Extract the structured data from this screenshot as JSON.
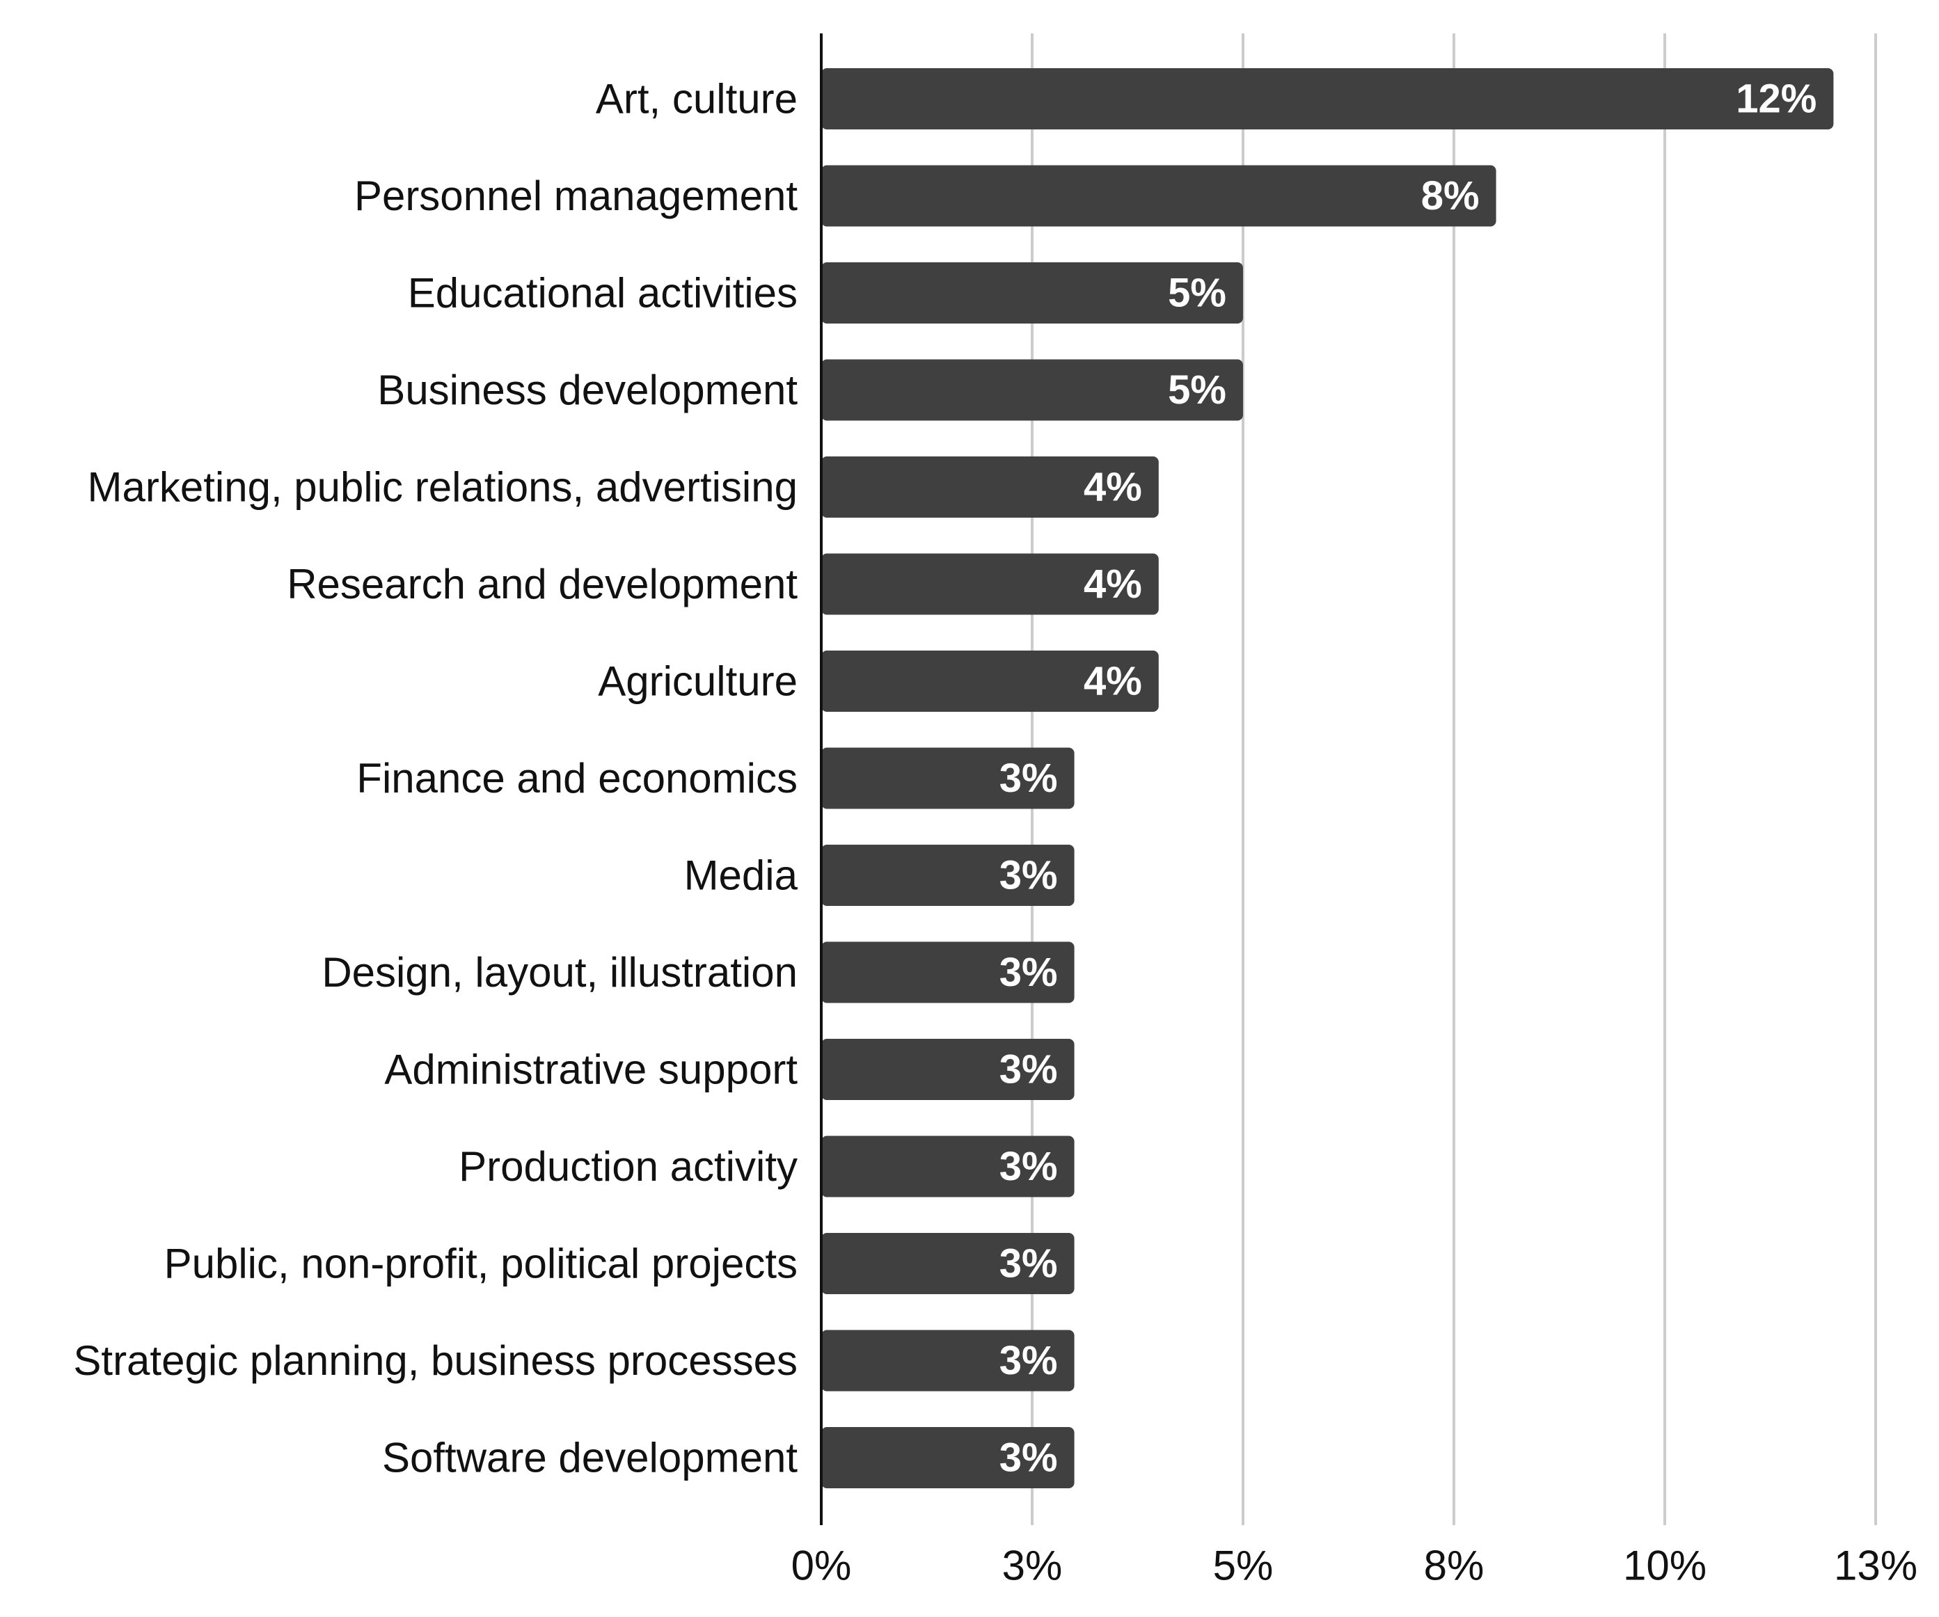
{
  "chart_data": {
    "type": "bar",
    "orientation": "horizontal",
    "title": "",
    "xlabel": "",
    "ylabel": "",
    "categories": [
      "Art, culture",
      "Personnel management",
      "Educational activities",
      "Business development",
      "Marketing, public relations, advertising",
      "Research and development",
      "Agriculture",
      "Finance and economics",
      "Media",
      "Design, layout, illustration",
      "Administrative support",
      "Production activity",
      "Public, non-profit, political projects",
      "Strategic planning, business processes",
      "Software development"
    ],
    "values": [
      12.0,
      8.0,
      5.0,
      5.0,
      4.0,
      4.0,
      4.0,
      3.0,
      3.0,
      3.0,
      3.0,
      3.0,
      3.0,
      3.0,
      3.0
    ],
    "value_labels": [
      "12%",
      "8%",
      "5%",
      "5%",
      "4%",
      "4%",
      "4%",
      "3%",
      "3%",
      "3%",
      "3%",
      "3%",
      "3%",
      "3%",
      "3%"
    ],
    "xlim": [
      0,
      12.5
    ],
    "xticks": [
      0,
      2.5,
      5,
      7.5,
      10,
      12.5
    ],
    "xtick_labels": [
      "0%",
      "3%",
      "5%",
      "8%",
      "10%",
      "13%"
    ],
    "grid": true,
    "legend": "none",
    "colors": {
      "bar": "#404040",
      "grid": "#cccccc",
      "axis": "#111111",
      "value_text": "#ffffff",
      "label_text": "#111111"
    }
  }
}
